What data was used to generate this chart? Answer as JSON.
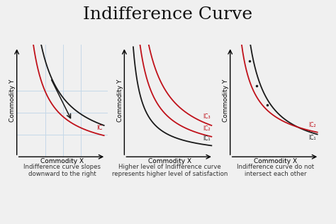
{
  "title": "Indifference Curve",
  "title_fontsize": 18,
  "background_color": "#f0f0f0",
  "curve_color_black": "#1a1a1a",
  "curve_color_red": "#c0111a",
  "grid_color": "#c5d8e8",
  "axis_label_fontsize": 6.5,
  "caption_fontsize": 6.2,
  "panel1": {
    "xlabel": "Commodity X",
    "ylabel": "Commodity Y",
    "caption": "Indifference curve slopes\ndownward to the right",
    "label_IC": "IC"
  },
  "panel2": {
    "xlabel": "Commodity X",
    "ylabel": "Commodity Y",
    "caption": "Higher level of Indifference curve\nrepresents higher level of satisfaction",
    "label_IC1": "IC₁",
    "label_IC2": "IC₂",
    "label_IC3": "IC₃"
  },
  "panel3": {
    "xlabel": "Commodity X",
    "ylabel": "Commodity Y",
    "caption": "Indifference curve do not\nintersect each other",
    "label_IC1": "IC₁",
    "label_IC2": "IC₂"
  }
}
